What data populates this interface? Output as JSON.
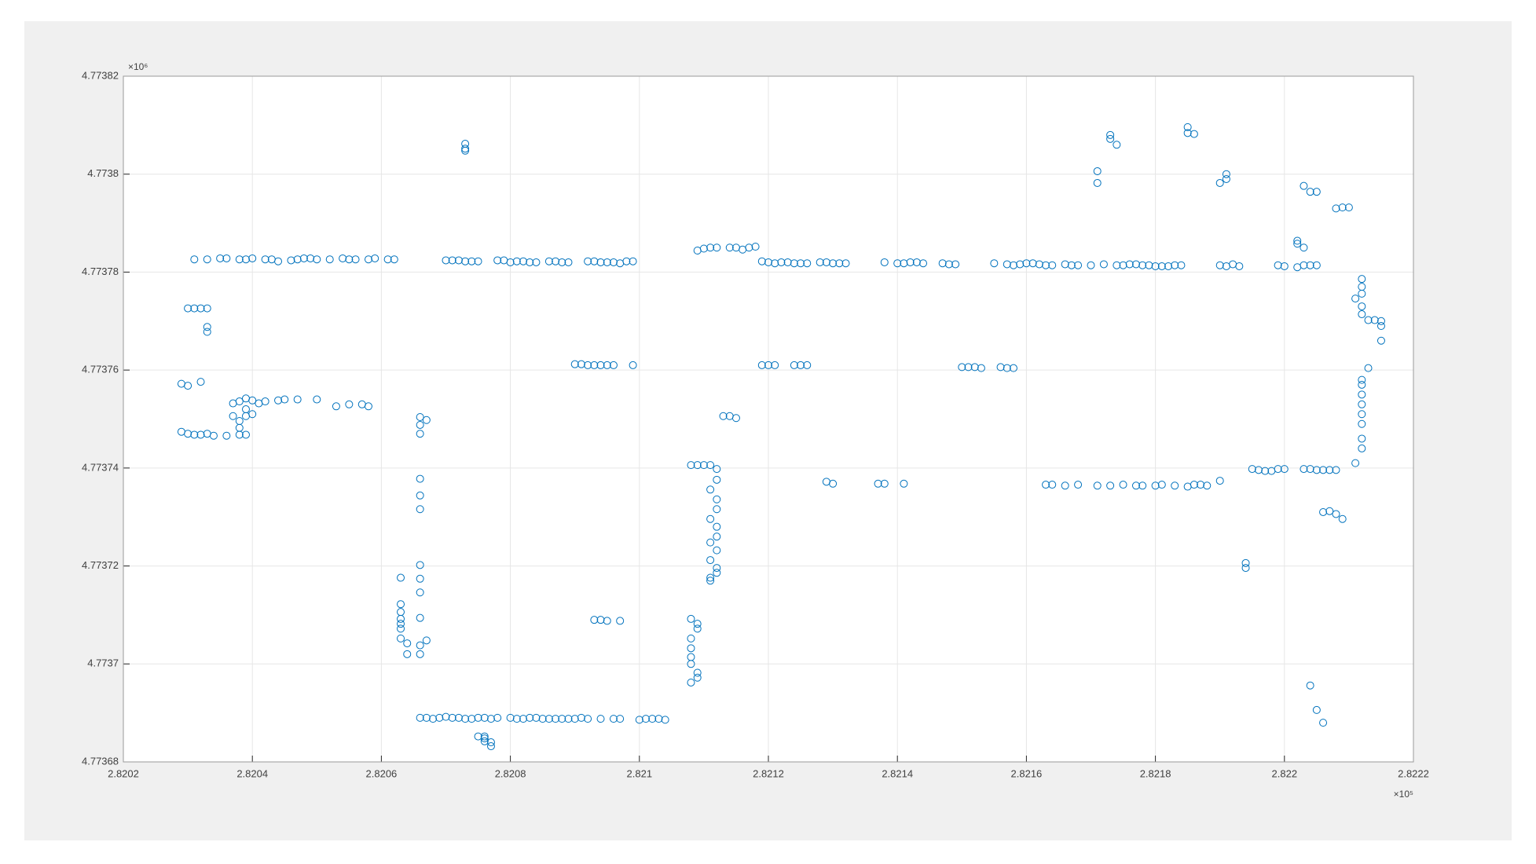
{
  "chart_data": {
    "type": "scatter",
    "x_exponent": "×10⁵",
    "y_exponent": "×10⁶",
    "color": "#0072bd",
    "grid": true,
    "xlim": [
      2.8202,
      2.8222
    ],
    "xticks": [
      2.8202,
      2.8204,
      2.8206,
      2.8208,
      2.821,
      2.8212,
      2.8214,
      2.8216,
      2.8218,
      2.822,
      2.8222
    ],
    "ylim": [
      4.77368,
      4.77382
    ],
    "yticks": [
      4.77368,
      4.7737,
      4.77372,
      4.77374,
      4.77376,
      4.77378,
      4.7738,
      4.77382
    ],
    "x": [
      2.82031,
      2.82033,
      2.82035,
      2.82036,
      2.82038,
      2.82039,
      2.8204,
      2.82042,
      2.82043,
      2.82044,
      2.82046,
      2.82047,
      2.82048,
      2.82049,
      2.8205,
      2.82052,
      2.82054,
      2.82055,
      2.82056,
      2.82058,
      2.82059,
      2.82061,
      2.82062,
      2.8207,
      2.82071,
      2.82072,
      2.82073,
      2.82074,
      2.82075,
      2.82078,
      2.82079,
      2.8208,
      2.82081,
      2.82082,
      2.82083,
      2.82084,
      2.82086,
      2.82087,
      2.82088,
      2.82089,
      2.82092,
      2.82093,
      2.82094,
      2.82095,
      2.82096,
      2.82097,
      2.82098,
      2.82099,
      2.82109,
      2.8211,
      2.82111,
      2.82112,
      2.82114,
      2.82115,
      2.82116,
      2.82117,
      2.82118,
      2.82119,
      2.8212,
      2.82121,
      2.82122,
      2.82123,
      2.82124,
      2.82125,
      2.82126,
      2.82128,
      2.82129,
      2.8213,
      2.82131,
      2.82132,
      2.82138,
      2.8214,
      2.82141,
      2.82142,
      2.82143,
      2.82144,
      2.82147,
      2.82148,
      2.82149,
      2.82155,
      2.82157,
      2.82158,
      2.82159,
      2.8216,
      2.82161,
      2.82162,
      2.82163,
      2.82164,
      2.82166,
      2.82167,
      2.82168,
      2.8217,
      2.82172,
      2.82174,
      2.82175,
      2.82176,
      2.82177,
      2.82178,
      2.82179,
      2.8218,
      2.82181,
      2.82182,
      2.82183,
      2.82184,
      2.8219,
      2.82191,
      2.82192,
      2.82193,
      2.82199,
      2.822,
      2.82202,
      2.82203,
      2.82204,
      2.82205,
      2.8209,
      2.82091,
      2.82092,
      2.82093,
      2.82094,
      2.82095,
      2.82096,
      2.82099,
      2.82119,
      2.8212,
      2.82121,
      2.82124,
      2.82125,
      2.82126,
      2.8215,
      2.82151,
      2.82152,
      2.82153,
      2.82156,
      2.82157,
      2.82158,
      2.8203,
      2.82031,
      2.82032,
      2.82033,
      2.82033,
      2.82033,
      2.82029,
      2.8203,
      2.82032,
      2.82037,
      2.82038,
      2.82039,
      2.82039,
      2.8204,
      2.82041,
      2.82042,
      2.82044,
      2.82045,
      2.82047,
      2.8205,
      2.82053,
      2.82055,
      2.82057,
      2.82058,
      2.82037,
      2.82038,
      2.82039,
      2.8204,
      2.82029,
      2.8203,
      2.82031,
      2.82032,
      2.82033,
      2.82034,
      2.82036,
      2.82038,
      2.82039,
      2.82038,
      2.82066,
      2.82067,
      2.82066,
      2.82066,
      2.82066,
      2.82066,
      2.82066,
      2.82066,
      2.82066,
      2.82066,
      2.82066,
      2.82067,
      2.82066,
      2.82066,
      2.82063,
      2.82063,
      2.82063,
      2.82063,
      2.82063,
      2.82063,
      2.82063,
      2.82064,
      2.82064,
      2.82073,
      2.82073,
      2.82073,
      2.82066,
      2.82067,
      2.82068,
      2.82069,
      2.8207,
      2.82071,
      2.82072,
      2.82073,
      2.82074,
      2.82075,
      2.82076,
      2.82077,
      2.82078,
      2.8208,
      2.82081,
      2.82082,
      2.82083,
      2.82084,
      2.82085,
      2.82086,
      2.82087,
      2.82088,
      2.82089,
      2.8209,
      2.82091,
      2.82092,
      2.82094,
      2.82096,
      2.82097,
      2.821,
      2.82101,
      2.82102,
      2.82103,
      2.82104,
      2.82075,
      2.82076,
      2.82076,
      2.82077,
      2.82077,
      2.82076,
      2.82108,
      2.82109,
      2.82109,
      2.82108,
      2.82108,
      2.82108,
      2.82108,
      2.82109,
      2.82109,
      2.82108,
      2.82108,
      2.82109,
      2.8211,
      2.82111,
      2.82112,
      2.82112,
      2.82111,
      2.82112,
      2.82112,
      2.82111,
      2.82112,
      2.82112,
      2.82111,
      2.82112,
      2.82111,
      2.82112,
      2.82112,
      2.82111,
      2.82111,
      2.82113,
      2.82114,
      2.82115,
      2.82093,
      2.82094,
      2.82095,
      2.82097,
      2.82129,
      2.8213,
      2.82137,
      2.82138,
      2.82141,
      2.82163,
      2.82164,
      2.82166,
      2.82168,
      2.82171,
      2.82173,
      2.82175,
      2.82177,
      2.82178,
      2.8218,
      2.82181,
      2.82183,
      2.82185,
      2.82186,
      2.82187,
      2.82188,
      2.8219,
      2.82195,
      2.82196,
      2.82197,
      2.82198,
      2.82199,
      2.822,
      2.82203,
      2.82204,
      2.82205,
      2.82206,
      2.82207,
      2.82208,
      2.82212,
      2.82212,
      2.82212,
      2.82211,
      2.82212,
      2.82212,
      2.82213,
      2.82214,
      2.82215,
      2.82215,
      2.82215,
      2.82213,
      2.82212,
      2.82212,
      2.82212,
      2.82212,
      2.82212,
      2.82212,
      2.82212,
      2.82212,
      2.82211,
      2.82171,
      2.82171,
      2.82173,
      2.82173,
      2.82174,
      2.82185,
      2.82185,
      2.82186,
      2.8219,
      2.82191,
      2.82191,
      2.82203,
      2.82204,
      2.82205,
      2.82208,
      2.82209,
      2.8221,
      2.82202,
      2.82202,
      2.82203,
      2.82206,
      2.82207,
      2.82208,
      2.82209,
      2.82194,
      2.82194,
      2.82204,
      2.82205,
      2.82206
    ],
    "values": [
      4.7737826,
      4.7737826,
      4.7737828,
      4.7737828,
      4.7737826,
      4.7737826,
      4.7737828,
      4.7737826,
      4.7737826,
      4.7737822,
      4.7737824,
      4.7737826,
      4.7737828,
      4.7737828,
      4.7737826,
      4.7737826,
      4.7737828,
      4.7737826,
      4.7737826,
      4.7737826,
      4.7737828,
      4.7737826,
      4.7737826,
      4.7737824,
      4.7737824,
      4.7737824,
      4.7737822,
      4.7737822,
      4.7737822,
      4.7737824,
      4.7737824,
      4.773782,
      4.7737822,
      4.7737822,
      4.773782,
      4.773782,
      4.7737822,
      4.7737822,
      4.773782,
      4.773782,
      4.7737822,
      4.7737822,
      4.773782,
      4.773782,
      4.773782,
      4.7737818,
      4.7737822,
      4.7737822,
      4.7737844,
      4.7737848,
      4.773785,
      4.773785,
      4.773785,
      4.773785,
      4.7737846,
      4.773785,
      4.7737852,
      4.7737822,
      4.773782,
      4.7737818,
      4.773782,
      4.773782,
      4.7737818,
      4.7737818,
      4.7737818,
      4.773782,
      4.773782,
      4.7737818,
      4.7737818,
      4.7737818,
      4.773782,
      4.7737818,
      4.7737818,
      4.773782,
      4.773782,
      4.7737818,
      4.7737818,
      4.7737816,
      4.7737816,
      4.7737818,
      4.7737816,
      4.7737814,
      4.7737816,
      4.7737818,
      4.7737818,
      4.7737816,
      4.7737814,
      4.7737814,
      4.7737816,
      4.7737814,
      4.7737814,
      4.7737814,
      4.7737816,
      4.7737814,
      4.7737814,
      4.7737816,
      4.7737816,
      4.7737814,
      4.7737814,
      4.7737812,
      4.7737812,
      4.7737812,
      4.7737814,
      4.7737814,
      4.7737814,
      4.7737812,
      4.7737816,
      4.7737812,
      4.7737814,
      4.7737812,
      4.773781,
      4.7737814,
      4.7737814,
      4.7737814,
      4.7737612,
      4.7737612,
      4.773761,
      4.773761,
      4.773761,
      4.773761,
      4.773761,
      4.773761,
      4.773761,
      4.773761,
      4.773761,
      4.773761,
      4.773761,
      4.773761,
      4.7737606,
      4.7737606,
      4.7737606,
      4.7737604,
      4.7737606,
      4.7737604,
      4.7737604,
      4.7737726,
      4.7737726,
      4.7737726,
      4.7737726,
      4.7737688,
      4.7737678,
      4.7737572,
      4.7737568,
      4.7737576,
      4.7737532,
      4.7737536,
      4.7737542,
      4.773752,
      4.7737538,
      4.7737532,
      4.7737536,
      4.7737538,
      4.773754,
      4.773754,
      4.773754,
      4.7737526,
      4.773753,
      4.773753,
      4.7737526,
      4.7737506,
      4.7737496,
      4.7737506,
      4.773751,
      4.7737474,
      4.773747,
      4.7737468,
      4.7737468,
      4.773747,
      4.7737466,
      4.7737466,
      4.7737468,
      4.7737468,
      4.7737482,
      4.7737504,
      4.7737498,
      4.7737488,
      4.773747,
      4.7737378,
      4.7737344,
      4.7737316,
      4.7737202,
      4.7737174,
      4.7737146,
      4.7737094,
      4.7737048,
      4.7737038,
      4.773702,
      4.7737176,
      4.7737122,
      4.7737106,
      4.7737092,
      4.7737082,
      4.7737072,
      4.7737052,
      4.7737042,
      4.773702,
      4.7738062,
      4.7738052,
      4.7738048,
      4.773689,
      4.773689,
      4.7736888,
      4.773689,
      4.7736892,
      4.773689,
      4.773689,
      4.7736888,
      4.7736888,
      4.773689,
      4.773689,
      4.7736888,
      4.773689,
      4.773689,
      4.7736888,
      4.7736888,
      4.773689,
      4.773689,
      4.7736888,
      4.7736888,
      4.7736888,
      4.7736888,
      4.7736888,
      4.7736888,
      4.773689,
      4.7736888,
      4.7736888,
      4.7736888,
      4.7736888,
      4.7736886,
      4.7736888,
      4.7736888,
      4.7736888,
      4.7736886,
      4.7736852,
      4.7736848,
      4.7736842,
      4.773684,
      4.7736832,
      4.7736852,
      4.7737092,
      4.7737082,
      4.7737072,
      4.7737052,
      4.7737032,
      4.7737014,
      4.7737,
      4.7736982,
      4.7736972,
      4.7736962,
      4.7737406,
      4.7737406,
      4.7737406,
      4.7737406,
      4.7737398,
      4.7737376,
      4.7737356,
      4.7737336,
      4.7737316,
      4.7737296,
      4.773728,
      4.773726,
      4.7737248,
      4.7737232,
      4.7737212,
      4.7737196,
      4.7737186,
      4.7737176,
      4.773717,
      4.7737506,
      4.7737506,
      4.7737502,
      4.773709,
      4.773709,
      4.7737088,
      4.7737088,
      4.7737372,
      4.7737368,
      4.7737368,
      4.7737368,
      4.7737368,
      4.7737366,
      4.7737366,
      4.7737364,
      4.7737366,
      4.7737364,
      4.7737364,
      4.7737366,
      4.7737364,
      4.7737364,
      4.7737364,
      4.7737366,
      4.7737364,
      4.7737362,
      4.7737366,
      4.7737366,
      4.7737364,
      4.7737374,
      4.7737398,
      4.7737396,
      4.7737394,
      4.7737394,
      4.7737398,
      4.7737398,
      4.7737398,
      4.7737398,
      4.7737396,
      4.7737396,
      4.7737396,
      4.7737396,
      4.7737786,
      4.773777,
      4.7737756,
      4.7737746,
      4.773773,
      4.7737714,
      4.7737702,
      4.7737702,
      4.77377,
      4.773769,
      4.773766,
      4.7737604,
      4.773758,
      4.773757,
      4.773755,
      4.773753,
      4.773751,
      4.773749,
      4.773746,
      4.773744,
      4.773741,
      4.7738006,
      4.7737982,
      4.773808,
      4.7738072,
      4.773806,
      4.7738096,
      4.7738084,
      4.7738082,
      4.7737982,
      4.773799,
      4.7738,
      4.7737976,
      4.7737964,
      4.7737964,
      4.773793,
      4.7737932,
      4.7737932,
      4.7737864,
      4.7737858,
      4.773785,
      4.773731,
      4.7737312,
      4.7737306,
      4.7737296,
      4.7737196,
      4.7737206,
      4.7736956,
      4.7736906,
      4.773688
    ]
  }
}
